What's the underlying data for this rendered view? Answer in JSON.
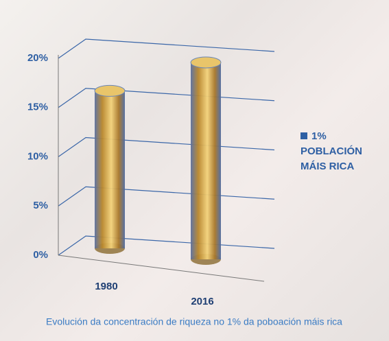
{
  "chart_data": {
    "type": "cylinder-bar",
    "title": "Evolución da concentración de riqueza no 1% da poboación máis rica",
    "categories": [
      "1980",
      "2016"
    ],
    "series": [
      {
        "name": "1% POBLACIÓN MÁIS RICA",
        "color": "#2e5fa3",
        "values": [
          16,
          20
        ]
      }
    ],
    "ylim": [
      0,
      20
    ],
    "yticks": [
      {
        "value": 0,
        "label": "0%"
      },
      {
        "value": 5,
        "label": "5%"
      },
      {
        "value": 10,
        "label": "10%"
      },
      {
        "value": 15,
        "label": "15%"
      },
      {
        "value": 20,
        "label": "20%"
      }
    ],
    "grid": true,
    "legend": "right"
  }
}
